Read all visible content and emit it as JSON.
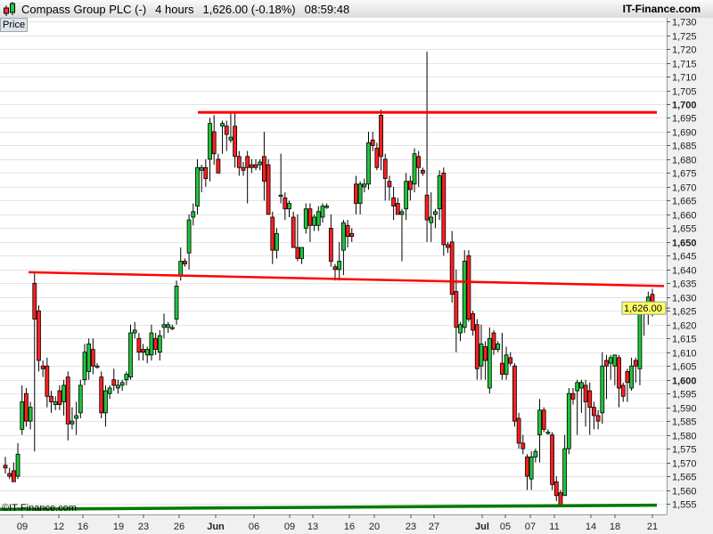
{
  "header": {
    "instrument": "Compass Group PLC (-)",
    "timeframe": "4 hours",
    "last_change": "1,626.00 (-0.18%)",
    "time": "08:59:48",
    "brand": "IT-Finance.com"
  },
  "panel_label": "Price",
  "copyright": "©IT-Finance.com",
  "colors": {
    "up": "#1fc43a",
    "down": "#ff1f1f",
    "resistance": "#ff0000",
    "support": "#007a00",
    "price_tag": "#ffff66"
  },
  "chart_data": {
    "type": "candlestick",
    "ylim": [
      1552,
      1733
    ],
    "y_ticks": [
      "1,555",
      "1,560",
      "1,565",
      "1,570",
      "1,575",
      "1,580",
      "1,585",
      "1,590",
      "1,595",
      "1,600",
      "1,605",
      "1,610",
      "1,615",
      "1,620",
      "1,625",
      "1,630",
      "1,635",
      "1,640",
      "1,645",
      "1,650",
      "1,655",
      "1,660",
      "1,665",
      "1,670",
      "1,675",
      "1,680",
      "1,685",
      "1,690",
      "1,695",
      "1,700",
      "1,705",
      "1,710",
      "1,715",
      "1,720",
      "1,725",
      "1,730"
    ],
    "y_ticks_bold": [
      "1,600",
      "1,650",
      "1,700"
    ],
    "x_ticks": [
      "09",
      "12",
      "16",
      "19",
      "23",
      "26",
      "Jun",
      "06",
      "09",
      "13",
      "16",
      "20",
      "23",
      "27",
      "Jul",
      "05",
      "07",
      "11",
      "14",
      "18",
      "21"
    ],
    "x_ticks_bold": [
      "Jun",
      "Jul"
    ],
    "last_price": 1626.0,
    "last_price_label": "1,626.00",
    "grid": true,
    "trendlines": [
      {
        "kind": "resistance",
        "from": 1697,
        "to": 1697
      },
      {
        "kind": "resistance",
        "from": 1639,
        "to": 1634
      },
      {
        "kind": "support",
        "from": 1553,
        "to": 1554.5
      }
    ],
    "ohlc": [
      [
        1569,
        1572,
        1566,
        1568
      ],
      [
        1566,
        1568,
        1564,
        1565
      ],
      [
        1567,
        1570,
        1563,
        1563
      ],
      [
        1565,
        1577,
        1564,
        1573
      ],
      [
        1582,
        1598,
        1580,
        1592
      ],
      [
        1595,
        1597,
        1583,
        1585
      ],
      [
        1585,
        1592,
        1582,
        1590
      ],
      [
        1635,
        1639,
        1574,
        1622
      ],
      [
        1625,
        1627,
        1603,
        1607
      ],
      [
        1605,
        1607,
        1601,
        1604
      ],
      [
        1605,
        1608,
        1590,
        1594
      ],
      [
        1594,
        1596,
        1588,
        1592
      ],
      [
        1591,
        1594,
        1589,
        1592
      ],
      [
        1596,
        1598,
        1589,
        1591
      ],
      [
        1592,
        1600,
        1587,
        1598
      ],
      [
        1601,
        1603,
        1578,
        1584
      ],
      [
        1584,
        1590,
        1582,
        1585
      ],
      [
        1586,
        1592,
        1580,
        1587
      ],
      [
        1588,
        1600,
        1586,
        1598
      ],
      [
        1600,
        1613,
        1598,
        1610
      ],
      [
        1603,
        1615,
        1600,
        1613
      ],
      [
        1611,
        1615,
        1602,
        1605
      ],
      [
        1605,
        1606,
        1604,
        1605
      ],
      [
        1601,
        1603,
        1586,
        1588
      ],
      [
        1588,
        1598,
        1583,
        1596
      ],
      [
        1595,
        1598,
        1593,
        1597
      ],
      [
        1600,
        1604,
        1596,
        1598
      ],
      [
        1597,
        1600,
        1595,
        1598
      ],
      [
        1598,
        1600,
        1596,
        1599
      ],
      [
        1600,
        1603,
        1598,
        1602
      ],
      [
        1601,
        1620,
        1600,
        1617
      ],
      [
        1617,
        1621,
        1615,
        1618
      ],
      [
        1615,
        1617,
        1607,
        1610
      ],
      [
        1611,
        1613,
        1607,
        1610
      ],
      [
        1609,
        1612,
        1606,
        1611
      ],
      [
        1609,
        1620,
        1607,
        1617
      ],
      [
        1615,
        1617,
        1609,
        1611
      ],
      [
        1610,
        1618,
        1607,
        1616
      ],
      [
        1619,
        1624,
        1615,
        1620
      ],
      [
        1619,
        1621,
        1617,
        1620
      ],
      [
        1619,
        1620,
        1618,
        1619
      ],
      [
        1622,
        1636,
        1620,
        1634
      ],
      [
        1638,
        1648,
        1636,
        1643
      ],
      [
        1643,
        1644,
        1641,
        1642
      ],
      [
        1646,
        1660,
        1640,
        1658
      ],
      [
        1659,
        1664,
        1656,
        1661
      ],
      [
        1663,
        1680,
        1660,
        1677
      ],
      [
        1676,
        1678,
        1668,
        1677
      ],
      [
        1677,
        1680,
        1670,
        1673
      ],
      [
        1680,
        1695,
        1672,
        1693
      ],
      [
        1690,
        1696,
        1678,
        1682
      ],
      [
        1680,
        1682,
        1675,
        1675
      ],
      [
        1692,
        1694,
        1682,
        1693
      ],
      [
        1692,
        1694,
        1683,
        1689
      ],
      [
        1687,
        1697,
        1686,
        1688
      ],
      [
        1692,
        1697,
        1677,
        1681
      ],
      [
        1681,
        1683,
        1674,
        1677
      ],
      [
        1677,
        1679,
        1674,
        1676
      ],
      [
        1681,
        1683,
        1664,
        1677
      ],
      [
        1678,
        1680,
        1675,
        1677
      ],
      [
        1678,
        1680,
        1676,
        1677
      ],
      [
        1678,
        1680,
        1676,
        1679
      ],
      [
        1681,
        1690,
        1665,
        1672
      ],
      [
        1678,
        1680,
        1660,
        1660
      ],
      [
        1659,
        1661,
        1642,
        1647
      ],
      [
        1647,
        1655,
        1644,
        1653
      ],
      [
        1667,
        1682,
        1664,
        1667
      ],
      [
        1666,
        1668,
        1658,
        1662
      ],
      [
        1662,
        1665,
        1659,
        1664
      ],
      [
        1659,
        1661,
        1648,
        1648
      ],
      [
        1648,
        1660,
        1643,
        1644
      ],
      [
        1644,
        1648,
        1642,
        1648
      ],
      [
        1655,
        1664,
        1653,
        1662
      ],
      [
        1662,
        1664,
        1650,
        1656
      ],
      [
        1656,
        1660,
        1654,
        1659
      ],
      [
        1656,
        1663,
        1654,
        1661
      ],
      [
        1659,
        1664,
        1657,
        1663
      ],
      [
        1663,
        1664,
        1662,
        1663
      ],
      [
        1655,
        1660,
        1641,
        1643
      ],
      [
        1641,
        1642,
        1636,
        1640
      ],
      [
        1640,
        1650,
        1636,
        1643
      ],
      [
        1647,
        1658,
        1638,
        1657
      ],
      [
        1656,
        1658,
        1648,
        1652
      ],
      [
        1653,
        1655,
        1650,
        1652
      ],
      [
        1671,
        1674,
        1660,
        1664
      ],
      [
        1664,
        1672,
        1660,
        1671
      ],
      [
        1670,
        1673,
        1668,
        1671
      ],
      [
        1671,
        1690,
        1669,
        1686
      ],
      [
        1687,
        1690,
        1683,
        1685
      ],
      [
        1684,
        1686,
        1676,
        1677
      ],
      [
        1696,
        1698,
        1676,
        1681
      ],
      [
        1680,
        1682,
        1665,
        1673
      ],
      [
        1672,
        1674,
        1665,
        1670
      ],
      [
        1666,
        1670,
        1658,
        1663
      ],
      [
        1664,
        1666,
        1660,
        1660
      ],
      [
        1660,
        1662,
        1643,
        1661
      ],
      [
        1662,
        1675,
        1658,
        1672
      ],
      [
        1672,
        1674,
        1665,
        1669
      ],
      [
        1671,
        1684,
        1668,
        1682
      ],
      [
        1681,
        1683,
        1670,
        1677
      ],
      [
        1676,
        1677,
        1674,
        1675
      ],
      [
        1667,
        1719,
        1650,
        1658
      ],
      [
        1657,
        1668,
        1650,
        1659
      ],
      [
        1660,
        1662,
        1655,
        1661
      ],
      [
        1662,
        1676,
        1658,
        1674
      ],
      [
        1675,
        1677,
        1645,
        1649
      ],
      [
        1649,
        1650,
        1646,
        1648
      ],
      [
        1650,
        1654,
        1628,
        1631
      ],
      [
        1632,
        1640,
        1610,
        1619
      ],
      [
        1617,
        1621,
        1614,
        1620
      ],
      [
        1619,
        1647,
        1617,
        1643
      ],
      [
        1645,
        1647,
        1621,
        1622
      ],
      [
        1624,
        1625,
        1616,
        1618
      ],
      [
        1620,
        1622,
        1600,
        1604
      ],
      [
        1605,
        1620,
        1600,
        1613
      ],
      [
        1612,
        1614,
        1600,
        1607
      ],
      [
        1597,
        1619,
        1595,
        1615
      ],
      [
        1617,
        1618,
        1609,
        1611
      ],
      [
        1611,
        1614,
        1610,
        1613
      ],
      [
        1606,
        1617,
        1600,
        1602
      ],
      [
        1602,
        1612,
        1600,
        1609
      ],
      [
        1608,
        1610,
        1605,
        1606
      ],
      [
        1605,
        1606,
        1583,
        1585
      ],
      [
        1586,
        1588,
        1575,
        1577
      ],
      [
        1577,
        1580,
        1573,
        1575
      ],
      [
        1572,
        1573,
        1560,
        1565
      ],
      [
        1564,
        1574,
        1560,
        1572
      ],
      [
        1572,
        1575,
        1570,
        1574
      ],
      [
        1580,
        1593,
        1570,
        1589
      ],
      [
        1589,
        1590,
        1581,
        1582
      ],
      [
        1581,
        1582,
        1580,
        1581
      ],
      [
        1580,
        1581,
        1560,
        1562
      ],
      [
        1563,
        1565,
        1556,
        1558
      ],
      [
        1559,
        1560,
        1554,
        1554
      ],
      [
        1558,
        1580,
        1558,
        1575
      ],
      [
        1575,
        1597,
        1573,
        1595
      ],
      [
        1595,
        1597,
        1591,
        1593
      ],
      [
        1596,
        1600,
        1580,
        1599
      ],
      [
        1597,
        1600,
        1588,
        1599
      ],
      [
        1598,
        1600,
        1583,
        1592
      ],
      [
        1596,
        1599,
        1580,
        1590
      ],
      [
        1590,
        1592,
        1582,
        1587
      ],
      [
        1587,
        1589,
        1582,
        1585
      ],
      [
        1588,
        1610,
        1584,
        1605
      ],
      [
        1607,
        1609,
        1593,
        1605
      ],
      [
        1606,
        1609,
        1600,
        1608
      ],
      [
        1605,
        1609,
        1598,
        1609
      ],
      [
        1608,
        1609,
        1590,
        1597
      ],
      [
        1598,
        1599,
        1592,
        1594
      ],
      [
        1603,
        1604,
        1592,
        1599
      ],
      [
        1597,
        1608,
        1596,
        1605
      ],
      [
        1607,
        1608,
        1599,
        1605
      ],
      [
        1604,
        1628,
        1598,
        1624
      ],
      [
        1625,
        1627,
        1616,
        1624
      ],
      [
        1624,
        1632,
        1620,
        1630
      ],
      [
        1631,
        1633,
        1623,
        1626
      ]
    ]
  }
}
